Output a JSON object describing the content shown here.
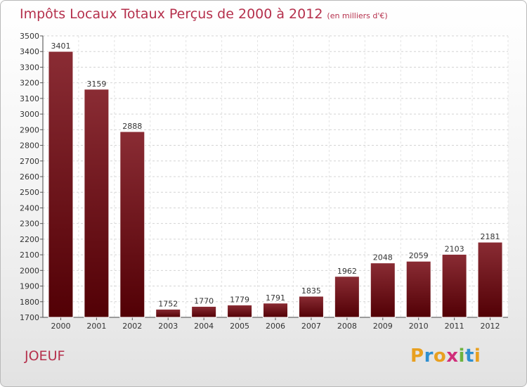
{
  "title": "Impôts Locaux Totaux Perçus de 2000 à 2012",
  "subtitle": "(en milliers d'€)",
  "city": "JOEUF",
  "logo": {
    "letters": [
      "P",
      "r",
      "o",
      "x",
      "i",
      "t",
      "i"
    ],
    "colors": [
      "#e8a020",
      "#2e8fd0",
      "#e8a020",
      "#d02e7a",
      "#6db33f",
      "#2e8fd0",
      "#e8a020"
    ]
  },
  "chart_data": {
    "type": "bar",
    "title": "Impôts Locaux Totaux Perçus de 2000 à 2012",
    "categories": [
      "2000",
      "2001",
      "2002",
      "2003",
      "2004",
      "2005",
      "2006",
      "2007",
      "2008",
      "2009",
      "2010",
      "2011",
      "2012"
    ],
    "values": [
      3401,
      3159,
      2888,
      1752,
      1770,
      1779,
      1791,
      1835,
      1962,
      2048,
      2059,
      2103,
      2181
    ],
    "ylim": [
      1700,
      3500
    ],
    "yticks": [
      1700,
      1800,
      1900,
      2000,
      2100,
      2200,
      2300,
      2400,
      2500,
      2600,
      2700,
      2800,
      2900,
      3000,
      3100,
      3200,
      3300,
      3400,
      3500
    ],
    "grid": true,
    "bar_color": "#8b1a1f"
  }
}
